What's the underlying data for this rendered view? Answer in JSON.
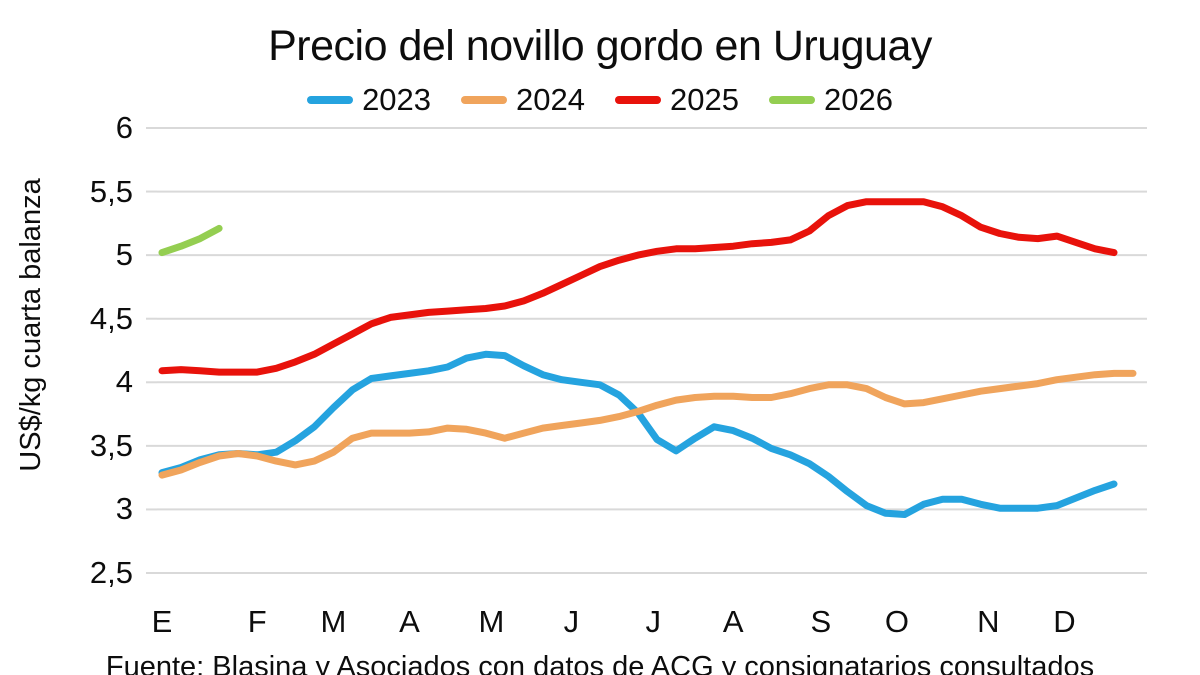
{
  "chart_data": {
    "type": "line",
    "title": "Precio del novillo gordo en Uruguay",
    "ylabel": "US$/kg cuarta balanza",
    "source": "Fuente: Blasina y Asociados con datos de ACG y consignatarios consultados",
    "ylim": [
      2.5,
      6
    ],
    "grid": true,
    "legend_position": "top-center",
    "background": "#FFFFFF",
    "grid_color": "#D9D9D9",
    "y_ticks": [
      {
        "label": "6",
        "value": 6
      },
      {
        "label": "5,5",
        "value": 5.5
      },
      {
        "label": "5",
        "value": 5
      },
      {
        "label": "4,5",
        "value": 4.5
      },
      {
        "label": "4",
        "value": 4
      },
      {
        "label": "3,5",
        "value": 3.5
      },
      {
        "label": "3",
        "value": 3
      },
      {
        "label": "2,5",
        "value": 2.5
      }
    ],
    "x_ticks": [
      {
        "label": "E",
        "week": 0
      },
      {
        "label": "F",
        "week": 5
      },
      {
        "label": "M",
        "week": 9
      },
      {
        "label": "A",
        "week": 13
      },
      {
        "label": "M",
        "week": 17.3
      },
      {
        "label": "J",
        "week": 21.5
      },
      {
        "label": "J",
        "week": 25.8
      },
      {
        "label": "A",
        "week": 30
      },
      {
        "label": "S",
        "week": 34.6
      },
      {
        "label": "O",
        "week": 38.6
      },
      {
        "label": "N",
        "week": 43.4
      },
      {
        "label": "D",
        "week": 47.4
      }
    ],
    "x_unit": "week_of_year",
    "series": [
      {
        "name": "2023",
        "color": "#25A3DF",
        "start_week": 0,
        "values": [
          3.29,
          3.33,
          3.39,
          3.43,
          3.44,
          3.43,
          3.45,
          3.54,
          3.65,
          3.8,
          3.94,
          4.03,
          4.05,
          4.07,
          4.09,
          4.12,
          4.19,
          4.22,
          4.21,
          4.13,
          4.06,
          4.02,
          4.0,
          3.98,
          3.9,
          3.76,
          3.55,
          3.46,
          3.56,
          3.65,
          3.62,
          3.56,
          3.48,
          3.43,
          3.36,
          3.26,
          3.14,
          3.03,
          2.97,
          2.96,
          3.04,
          3.08,
          3.08,
          3.04,
          3.01,
          3.01,
          3.01,
          3.03,
          3.09,
          3.15,
          3.2
        ]
      },
      {
        "name": "2024",
        "color": "#F0A45C",
        "start_week": 0,
        "values": [
          3.27,
          3.31,
          3.37,
          3.42,
          3.44,
          3.42,
          3.38,
          3.35,
          3.38,
          3.45,
          3.56,
          3.6,
          3.6,
          3.6,
          3.61,
          3.64,
          3.63,
          3.6,
          3.56,
          3.6,
          3.64,
          3.66,
          3.68,
          3.7,
          3.73,
          3.77,
          3.82,
          3.86,
          3.88,
          3.89,
          3.89,
          3.88,
          3.88,
          3.91,
          3.95,
          3.98,
          3.98,
          3.95,
          3.88,
          3.83,
          3.84,
          3.87,
          3.9,
          3.93,
          3.95,
          3.97,
          3.99,
          4.02,
          4.04,
          4.06,
          4.07,
          4.07
        ]
      },
      {
        "name": "2025",
        "color": "#E8120B",
        "start_week": 0,
        "values": [
          4.09,
          4.1,
          4.09,
          4.08,
          4.08,
          4.08,
          4.11,
          4.16,
          4.22,
          4.3,
          4.38,
          4.46,
          4.51,
          4.53,
          4.55,
          4.56,
          4.57,
          4.58,
          4.6,
          4.64,
          4.7,
          4.77,
          4.84,
          4.91,
          4.96,
          5.0,
          5.03,
          5.05,
          5.05,
          5.06,
          5.07,
          5.09,
          5.1,
          5.12,
          5.19,
          5.31,
          5.39,
          5.42,
          5.42,
          5.42,
          5.42,
          5.38,
          5.31,
          5.22,
          5.17,
          5.14,
          5.13,
          5.15,
          5.1,
          5.05,
          5.02
        ]
      },
      {
        "name": "2026",
        "color": "#94CE51",
        "start_week": 0,
        "values": [
          5.02,
          5.07,
          5.13,
          5.21
        ]
      }
    ]
  }
}
